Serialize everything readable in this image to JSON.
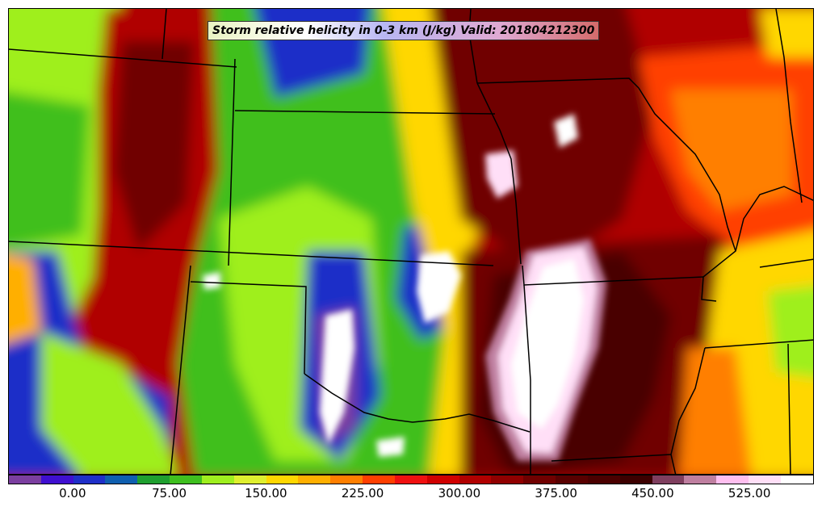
{
  "title": "Storm relative helicity in 0-3 km (J/kg) Valid: 201804212300",
  "colorbar": {
    "colors": [
      "#7b3fa0",
      "#3f0fd0",
      "#1f2fc8",
      "#0f5faf",
      "#1f9f2f",
      "#3fbf1f",
      "#9fef1f",
      "#dfef2f",
      "#ffd700",
      "#ffaf00",
      "#ff7f00",
      "#ff3f00",
      "#f01010",
      "#d00000",
      "#b00000",
      "#900000",
      "#700000",
      "#580000",
      "#4a0000",
      "#3c0000",
      "#7f3f5f",
      "#bf7fa0",
      "#ffbfef",
      "#ffdff7",
      "#ffffff"
    ],
    "tick_labels": [
      "0.00",
      "75.00",
      "150.00",
      "225.00",
      "300.00",
      "375.00",
      "450.00",
      "525.00"
    ],
    "tick_values": [
      0,
      75,
      150,
      225,
      300,
      375,
      450,
      525
    ],
    "min": -50,
    "max": 575
  }
}
